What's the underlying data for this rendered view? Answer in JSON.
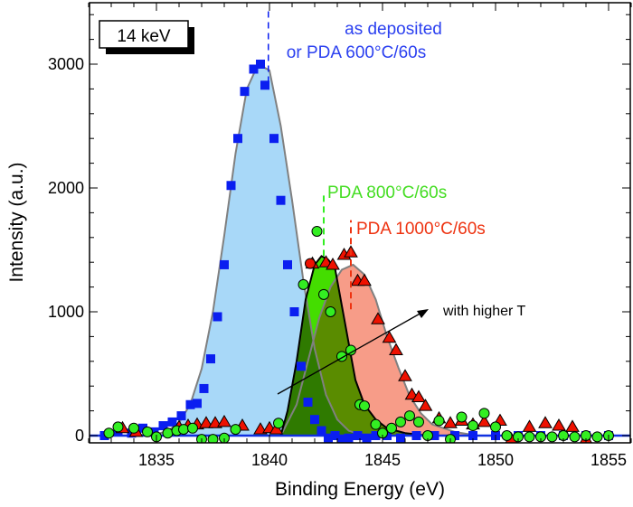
{
  "chart_data": {
    "type": "scatter",
    "xlabel": "Binding Energy (eV)",
    "ylabel": "Intensity (a.u.)",
    "xlim": [
      1832,
      1856
    ],
    "ylim": [
      -60,
      3520
    ],
    "xticks": [
      1835,
      1840,
      1845,
      1850,
      1855
    ],
    "yticks": [
      0,
      1000,
      2000,
      3000
    ],
    "grid": false,
    "colors": {
      "blue": "#0a1ef0",
      "green": "#33ee22",
      "red": "#ee1100",
      "blue_fill": "#a8d8f8",
      "green_fill": "#44dd00",
      "red_fill": "#f79c88",
      "green_blue_overlap": "#2f7a00",
      "green_red_overlap": "#5a8c00",
      "fit_line": "#808080"
    },
    "annotations": {
      "energy_box": "14 keV",
      "blue_label_1": "as deposited",
      "blue_label_2": "or PDA 600°C/60s",
      "green_label": "PDA 800°C/60s",
      "red_label": "PDA 1000°C/60s",
      "arrow_label": "with higher T"
    },
    "peak_positions": {
      "blue": 1839.95,
      "green": 1842.4,
      "red": 1843.6
    },
    "series": [
      {
        "name": "as deposited or PDA 600°C/60s",
        "marker": "square",
        "color": "#0a1ef0",
        "x": [
          1832.7,
          1833.3,
          1833.9,
          1834.4,
          1834.9,
          1835.3,
          1835.7,
          1836.1,
          1836.5,
          1836.8,
          1837.1,
          1837.4,
          1837.7,
          1838.0,
          1838.3,
          1838.6,
          1838.9,
          1839.3,
          1839.6,
          1839.8,
          1840.2,
          1840.5,
          1840.8,
          1841.1,
          1841.4,
          1841.7,
          1842.0,
          1842.3,
          1842.6,
          1842.9,
          1843.2,
          1843.5,
          1843.9,
          1844.3,
          1844.7,
          1845.2,
          1845.8,
          1846.5,
          1847.3,
          1848.2,
          1849.0,
          1850.0,
          1851.0,
          1852.0,
          1853.0,
          1854.0,
          1855.0
        ],
        "y": [
          0,
          40,
          20,
          60,
          30,
          80,
          110,
          160,
          250,
          260,
          380,
          620,
          960,
          1380,
          2020,
          2400,
          2780,
          2960,
          3000,
          2830,
          2400,
          1900,
          1380,
          1000,
          560,
          270,
          130,
          40,
          -20,
          0,
          -30,
          -20,
          0,
          -20,
          0,
          0,
          -20,
          0,
          0,
          0,
          0,
          0,
          0,
          0,
          0,
          0,
          0
        ]
      },
      {
        "name": "PDA 800°C/60s",
        "marker": "circle",
        "color": "#33ee22",
        "x": [
          1832.9,
          1833.3,
          1834.0,
          1834.6,
          1835.0,
          1835.5,
          1835.9,
          1836.2,
          1836.6,
          1837.0,
          1837.5,
          1838.0,
          1838.5,
          1840.4,
          1841.5,
          1842.1,
          1842.4,
          1842.7,
          1843.2,
          1843.6,
          1844.0,
          1844.2,
          1844.7,
          1845.0,
          1845.4,
          1845.8,
          1846.2,
          1846.6,
          1847.0,
          1847.5,
          1848.0,
          1848.5,
          1849.0,
          1849.5,
          1850.0,
          1850.5,
          1851.0,
          1851.5,
          1852.0,
          1852.5,
          1853.0,
          1853.5,
          1854.0,
          1854.5,
          1855.0
        ],
        "y": [
          20,
          70,
          60,
          30,
          -10,
          20,
          40,
          50,
          60,
          -30,
          -30,
          -20,
          50,
          100,
          1220,
          1650,
          1140,
          1000,
          640,
          690,
          250,
          240,
          90,
          20,
          60,
          110,
          160,
          110,
          0,
          120,
          -30,
          150,
          80,
          180,
          70,
          0,
          -10,
          -10,
          -10,
          -10,
          0,
          -10,
          0,
          -10,
          0
        ]
      },
      {
        "name": "PDA 1000°C/60s",
        "marker": "triangle",
        "color": "#ee1100",
        "x": [
          1833.5,
          1834.1,
          1836.0,
          1836.4,
          1836.8,
          1837.2,
          1837.6,
          1838.0,
          1838.8,
          1839.6,
          1840.0,
          1840.3,
          1841.9,
          1842.5,
          1842.8,
          1843.3,
          1843.6,
          1843.9,
          1844.2,
          1844.8,
          1845.3,
          1845.6,
          1846.0,
          1846.3,
          1846.6,
          1846.9,
          1847.5,
          1848.0,
          1848.5,
          1849.0,
          1849.5,
          1850.2,
          1850.7,
          1851.5,
          1852.2,
          1852.8,
          1853.4,
          1854.0
        ],
        "y": [
          60,
          30,
          70,
          80,
          90,
          100,
          100,
          110,
          80,
          50,
          60,
          50,
          1390,
          1400,
          1380,
          1460,
          1480,
          1250,
          1250,
          940,
          790,
          690,
          480,
          330,
          310,
          240,
          140,
          100,
          120,
          90,
          110,
          120,
          -30,
          70,
          100,
          80,
          70,
          -30
        ]
      }
    ],
    "fit_curves": [
      {
        "series": "blue",
        "x": [
          1834.0,
          1835.0,
          1835.5,
          1836.0,
          1836.5,
          1837.0,
          1837.5,
          1838.0,
          1838.5,
          1839.0,
          1839.5,
          1840.0,
          1840.5,
          1841.0,
          1841.5,
          1842.0,
          1842.5,
          1843.0,
          1843.5,
          1844.0,
          1845.0,
          1846.0
        ],
        "y": [
          0,
          12,
          37,
          104,
          254,
          540,
          1002,
          1617,
          2280,
          2800,
          3000,
          2950,
          2500,
          1900,
          1250,
          700,
          330,
          130,
          40,
          10,
          0,
          0
        ]
      },
      {
        "series": "green",
        "x": [
          1840.5,
          1840.8,
          1841.2,
          1841.6,
          1842.0,
          1842.3,
          1842.6,
          1842.9,
          1843.2,
          1843.5,
          1843.8,
          1844.2,
          1844.7,
          1845.2,
          1846.0,
          1847.0
        ],
        "y": [
          0,
          200,
          600,
          1100,
          1380,
          1450,
          1420,
          1350,
          1050,
          750,
          450,
          250,
          130,
          60,
          20,
          0
        ]
      },
      {
        "series": "red",
        "x": [
          1840.5,
          1841.2,
          1841.7,
          1842.2,
          1842.7,
          1843.2,
          1843.7,
          1844.2,
          1844.7,
          1845.2,
          1845.7,
          1846.2,
          1846.7,
          1847.2,
          1848.2,
          1849.2
        ],
        "y": [
          0,
          250,
          600,
          950,
          1200,
          1340,
          1380,
          1300,
          1100,
          800,
          550,
          320,
          180,
          90,
          30,
          0
        ]
      }
    ]
  }
}
